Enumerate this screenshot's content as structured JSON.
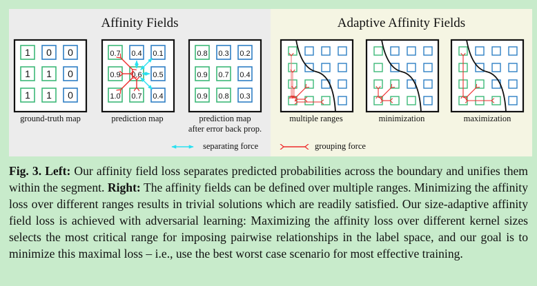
{
  "left_panel": {
    "title": "Affinity Fields",
    "maps": [
      {
        "label": "ground-truth map",
        "cells": [
          [
            "1",
            "0",
            "0"
          ],
          [
            "1",
            "1",
            "0"
          ],
          [
            "1",
            "1",
            "0"
          ]
        ],
        "classes": [
          [
            "g",
            "b",
            "b"
          ],
          [
            "g",
            "g",
            "b"
          ],
          [
            "g",
            "g",
            "b"
          ]
        ]
      },
      {
        "label": "prediction map",
        "cells": [
          [
            "0.7",
            "0.4",
            "0.1"
          ],
          [
            "0.9",
            "0.6",
            "0.5"
          ],
          [
            "1.0",
            "0.7",
            "0.4"
          ]
        ],
        "classes": [
          [
            "g",
            "b",
            "b"
          ],
          [
            "g",
            "g",
            "b"
          ],
          [
            "g",
            "g",
            "b"
          ]
        ]
      },
      {
        "label": "prediction map",
        "label2": "after error back prop.",
        "cells": [
          [
            "0.8",
            "0.3",
            "0.2"
          ],
          [
            "0.9",
            "0.7",
            "0.4"
          ],
          [
            "0.9",
            "0.8",
            "0.3"
          ]
        ],
        "classes": [
          [
            "g",
            "b",
            "b"
          ],
          [
            "g",
            "g",
            "b"
          ],
          [
            "g",
            "g",
            "b"
          ]
        ]
      }
    ]
  },
  "right_panel": {
    "title": "Adaptive Affinity Fields",
    "maps": [
      {
        "label": "multiple ranges"
      },
      {
        "label": "minimization"
      },
      {
        "label": "maximization"
      }
    ],
    "grid_classes": [
      [
        "g",
        "b",
        "b",
        "b"
      ],
      [
        "g",
        "b",
        "b",
        "b"
      ],
      [
        "g",
        "g",
        "b",
        "b"
      ],
      [
        "g",
        "g",
        "g",
        "b"
      ]
    ]
  },
  "legend": {
    "separating": "separating force",
    "grouping": "grouping force"
  },
  "colors": {
    "green": "#3cb878",
    "blue": "#2e7fc4",
    "separating": "#29e0f0",
    "grouping": "#ee2b2b",
    "grouping_light": "#f07a7a"
  },
  "caption": {
    "fig_label": "Fig. 3.",
    "left_label": "Left:",
    "left_text": "Our affinity field loss separates predicted probabilities across the boundary and unifies them within the segment.",
    "right_label": "Right:",
    "right_text": "The affinity fields can be defined over multiple ranges. Minimizing the affinity loss over different ranges results in trivial solutions which are readily satisfied. Our size-adaptive affinity field loss is achieved with adversarial learning: Maximizing the affinity loss over different kernel sizes selects the most critical range for imposing pairwise relationships in the label space, and our goal is to minimize this maximal loss – i.e., use the best worst case scenario for most effective training."
  }
}
